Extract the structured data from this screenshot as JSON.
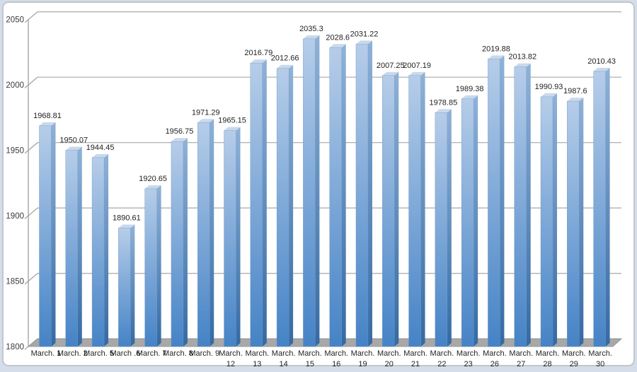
{
  "chart_data": {
    "type": "bar",
    "style": "3d-column",
    "title": "",
    "xlabel": "",
    "ylabel": "",
    "legend": "none",
    "grid": true,
    "ylim": [
      1800,
      2050
    ],
    "y_ticks": [
      1800,
      1850,
      1900,
      1950,
      2000,
      2050
    ],
    "categories": [
      "March. 1",
      "March. 2",
      "March. 5",
      "March .6",
      "March. 7",
      "March. 8",
      "March. 9",
      "March. 12",
      "March. 13",
      "March. 14",
      "March. 15",
      "March. 16",
      "March. 19",
      "March. 20",
      "March. 21",
      "March. 22",
      "March. 23",
      "March. 26",
      "March. 27",
      "March. 28",
      "March. 29",
      "March. 30"
    ],
    "x_label_lines": [
      [
        "March. 1"
      ],
      [
        "March. 2"
      ],
      [
        "March. 5"
      ],
      [
        "March .6"
      ],
      [
        "March. 7"
      ],
      [
        "March. 8"
      ],
      [
        "March. 9"
      ],
      [
        "March.",
        "12"
      ],
      [
        "March.",
        "13"
      ],
      [
        "March.",
        "14"
      ],
      [
        "March.",
        "15"
      ],
      [
        "March.",
        "16"
      ],
      [
        "March.",
        "19"
      ],
      [
        "March.",
        "20"
      ],
      [
        "March.",
        "21"
      ],
      [
        "March.",
        "22"
      ],
      [
        "March.",
        "23"
      ],
      [
        "March.",
        "26"
      ],
      [
        "March.",
        "27"
      ],
      [
        "March.",
        "28"
      ],
      [
        "March.",
        "29"
      ],
      [
        "March.",
        "30"
      ]
    ],
    "values": [
      1968.81,
      1950.07,
      1944.45,
      1890.61,
      1920.65,
      1956.75,
      1971.29,
      1965.15,
      2016.79,
      2012.66,
      2035.3,
      2028.6,
      2031.22,
      2007.25,
      2007.19,
      1978.85,
      1989.38,
      2019.88,
      2013.82,
      1990.93,
      1987.6,
      2010.43
    ],
    "data_labels": [
      "1968.81",
      "1950.07",
      "1944.45",
      "1890.61",
      "1920.65",
      "1956.75",
      "1971.29",
      "1965.15",
      "2016.79",
      "2012.66",
      "2035.3",
      "2028.6",
      "2031.22",
      "2007.25",
      "2007.19",
      "1978.85",
      "1989.38",
      "2019.88",
      "2013.82",
      "1990.93",
      "1987.6",
      "2010.43"
    ],
    "colors": {
      "bar_front_top": "#b6cde9",
      "bar_front_bottom": "#4583c6",
      "bar_side_top": "#8fb2d8",
      "bar_side_bottom": "#346aa3",
      "bar_top_face": "#c9d9ec",
      "bar_edge": "#6d94bf",
      "floor": "#a8a8a8",
      "floor_edge": "#8f8f8f",
      "gridline": "#b0b0b0",
      "axis": "#9e9e9e",
      "label_text": "#1f1f1f",
      "tick_text": "#3a3a3a",
      "card_border": "#c3c7cd",
      "page_background": "#d4dde9",
      "chart_background": "#ffffff"
    }
  }
}
